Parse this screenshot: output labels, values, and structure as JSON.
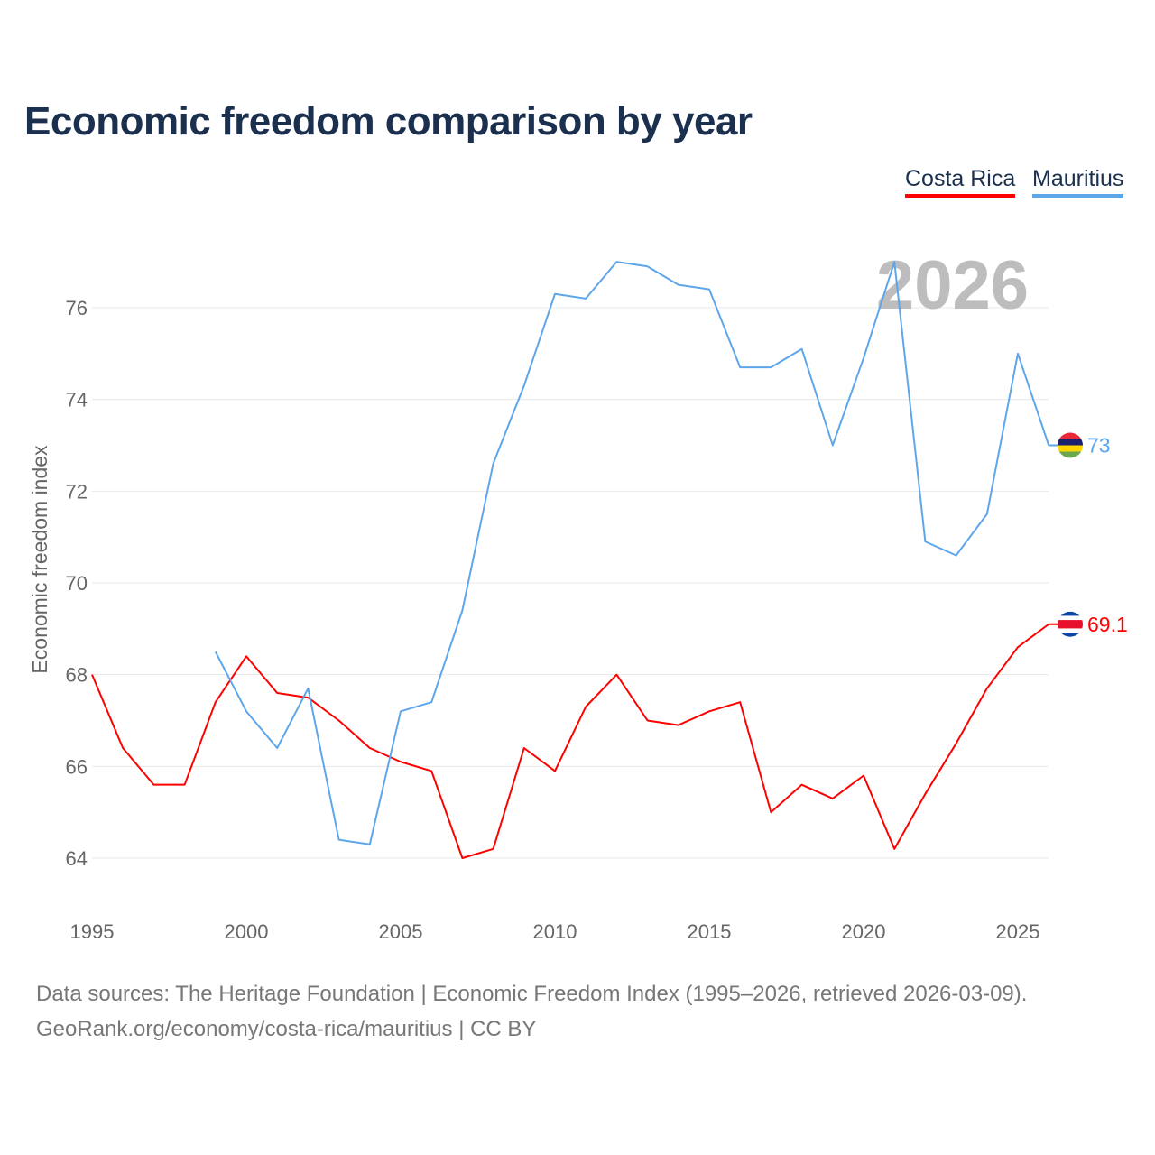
{
  "title": "Economic freedom comparison by year",
  "source_line1": "Data sources: The Heritage Foundation | Economic Freedom Index (1995–2026, retrieved 2026-03-09).",
  "source_line2": "GeoRank.org/economy/costa-rica/mauritius | CC BY",
  "chart_data": {
    "type": "line",
    "title": "Economic freedom comparison by year",
    "xlabel": "",
    "ylabel": "Economic freedom index",
    "xlim": [
      1995,
      2026
    ],
    "ylim": [
      63,
      77.5
    ],
    "xticks": [
      1995,
      2000,
      2005,
      2010,
      2015,
      2020,
      2025
    ],
    "yticks": [
      64,
      66,
      68,
      70,
      72,
      74,
      76
    ],
    "grid": true,
    "legend_position": "top-right",
    "year_watermark": "2026",
    "series": [
      {
        "name": "Costa Rica",
        "color": "#ff0000",
        "end_label": "69.1",
        "flag": "costa-rica-flag",
        "x": [
          1995,
          1996,
          1997,
          1998,
          1999,
          2000,
          2001,
          2002,
          2003,
          2004,
          2005,
          2006,
          2007,
          2008,
          2009,
          2010,
          2011,
          2012,
          2013,
          2014,
          2015,
          2016,
          2017,
          2018,
          2019,
          2020,
          2021,
          2022,
          2023,
          2024,
          2025,
          2026
        ],
        "values": [
          68.0,
          66.4,
          65.6,
          65.6,
          67.4,
          68.4,
          67.6,
          67.5,
          67.0,
          66.4,
          66.1,
          65.9,
          64.0,
          64.2,
          66.4,
          65.9,
          67.3,
          68.0,
          67.0,
          66.9,
          67.2,
          67.4,
          65.0,
          65.6,
          65.3,
          65.8,
          64.2,
          65.4,
          66.5,
          67.7,
          68.6,
          69.1
        ]
      },
      {
        "name": "Mauritius",
        "color": "#5ea6ea",
        "end_label": "73",
        "flag": "mauritius-flag",
        "x": [
          1999,
          2000,
          2001,
          2002,
          2003,
          2004,
          2005,
          2006,
          2007,
          2008,
          2009,
          2010,
          2011,
          2012,
          2013,
          2014,
          2015,
          2016,
          2017,
          2018,
          2019,
          2020,
          2021,
          2022,
          2023,
          2024,
          2025,
          2026
        ],
        "values": [
          68.5,
          67.2,
          66.4,
          67.7,
          64.4,
          64.3,
          67.2,
          67.4,
          69.4,
          72.6,
          74.3,
          76.3,
          76.2,
          77.0,
          76.9,
          76.5,
          76.4,
          74.7,
          74.7,
          75.1,
          73.0,
          74.9,
          77.0,
          70.9,
          70.6,
          71.5,
          75.0,
          73.0
        ]
      }
    ]
  }
}
